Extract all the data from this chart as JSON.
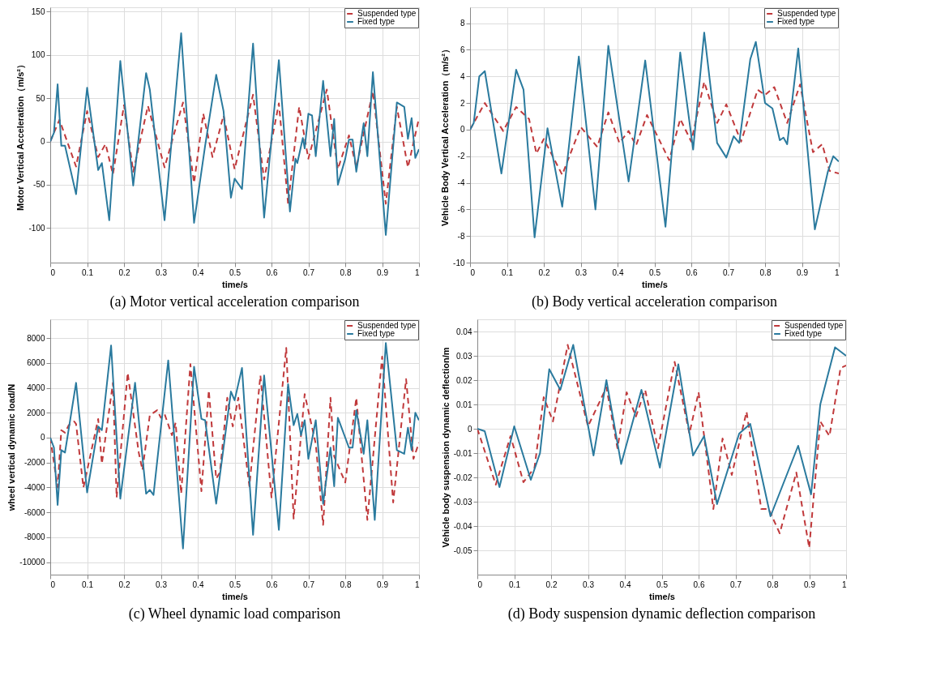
{
  "chart_data": [
    {
      "type": "line",
      "title": "(a) Motor vertical acceleration comparison",
      "xlabel": "time/s",
      "ylabel": "Motor Vertical Acceleration（m/s²）",
      "xlim": [
        0,
        1
      ],
      "xticks": [
        0,
        0.1,
        0.2,
        0.3,
        0.4,
        0.5,
        0.6,
        0.7,
        0.8,
        0.9,
        1
      ],
      "ylim": [
        -140,
        155
      ],
      "yticks": [
        -100,
        -50,
        0,
        50,
        100,
        150
      ],
      "grid": true,
      "legend": "top right",
      "series": [
        {
          "name": "Suspended type",
          "color": "#c0393b",
          "line_style": "dashed",
          "x": [
            0,
            0.025,
            0.07,
            0.1,
            0.13,
            0.15,
            0.17,
            0.2,
            0.225,
            0.265,
            0.31,
            0.36,
            0.39,
            0.415,
            0.44,
            0.47,
            0.5,
            0.55,
            0.58,
            0.62,
            0.645,
            0.675,
            0.7,
            0.75,
            0.78,
            0.81,
            0.83,
            0.875,
            0.91,
            0.94,
            0.97,
            1.0
          ],
          "values": [
            0,
            25,
            -29,
            35,
            -18,
            -3,
            -38,
            42,
            -35,
            41,
            -30,
            45,
            -48,
            32,
            -18,
            30,
            -32,
            54,
            -44,
            44,
            -72,
            40,
            -20,
            60,
            -32,
            7,
            -30,
            58,
            -72,
            40,
            -30,
            27
          ]
        },
        {
          "name": "Fixed type",
          "color": "#2a7a9e",
          "line_style": "solid",
          "x": [
            0,
            0.01,
            0.02,
            0.03,
            0.04,
            0.07,
            0.1,
            0.13,
            0.14,
            0.16,
            0.19,
            0.225,
            0.26,
            0.27,
            0.31,
            0.355,
            0.39,
            0.42,
            0.45,
            0.47,
            0.49,
            0.5,
            0.52,
            0.55,
            0.58,
            0.62,
            0.65,
            0.665,
            0.67,
            0.685,
            0.69,
            0.7,
            0.71,
            0.72,
            0.74,
            0.76,
            0.77,
            0.78,
            0.8,
            0.81,
            0.82,
            0.83,
            0.85,
            0.86,
            0.875,
            0.91,
            0.94,
            0.96,
            0.97,
            0.98,
            0.99,
            1.0
          ],
          "values": [
            0,
            10,
            66,
            -5,
            -5,
            -61,
            62,
            -33,
            -25,
            -91,
            93,
            -51,
            79,
            60,
            -91,
            125,
            -94,
            -5,
            77,
            35,
            -65,
            -43,
            -55,
            113,
            -88,
            94,
            -81,
            -20,
            -25,
            4,
            -8,
            32,
            30,
            -17,
            70,
            -17,
            26,
            -50,
            -20,
            2,
            2,
            -35,
            21,
            -17,
            80,
            -108,
            45,
            40,
            3,
            27,
            -19,
            -9
          ]
        }
      ]
    },
    {
      "type": "line",
      "title": "(b) Body vertical acceleration comparison",
      "xlabel": "time/s",
      "ylabel": "Vehicle Body Vertical Acceleration（m/s²）",
      "xlim": [
        0,
        1
      ],
      "xticks": [
        0,
        0.1,
        0.2,
        0.3,
        0.4,
        0.5,
        0.6,
        0.7,
        0.8,
        0.9,
        1
      ],
      "ylim": [
        -10,
        9.2
      ],
      "yticks": [
        -10,
        -8,
        -6,
        -4,
        -2,
        0,
        2,
        4,
        6,
        8
      ],
      "grid": true,
      "legend": "top right",
      "series": [
        {
          "name": "Suspended type",
          "color": "#c0393b",
          "line_style": "dashed",
          "x": [
            0,
            0.04,
            0.09,
            0.125,
            0.16,
            0.18,
            0.2,
            0.25,
            0.3,
            0.345,
            0.375,
            0.405,
            0.43,
            0.45,
            0.48,
            0.54,
            0.57,
            0.6,
            0.635,
            0.67,
            0.695,
            0.735,
            0.78,
            0.8,
            0.825,
            0.86,
            0.895,
            0.93,
            0.955,
            0.975,
            1.0
          ],
          "values": [
            0,
            2,
            -0.1,
            1.7,
            0.8,
            -1.8,
            -0.7,
            -3.4,
            0.2,
            -1.3,
            1.3,
            -1,
            -0.1,
            -1.2,
            1.1,
            -2.3,
            0.8,
            -0.9,
            3.6,
            0.5,
            1.9,
            -0.9,
            3,
            2.6,
            3.2,
            0.5,
            3.4,
            -1.7,
            -1.1,
            -3.1,
            -3.3
          ]
        },
        {
          "name": "Fixed type",
          "color": "#2a7a9e",
          "line_style": "solid",
          "x": [
            0,
            0.01,
            0.025,
            0.04,
            0.06,
            0.085,
            0.125,
            0.145,
            0.175,
            0.21,
            0.25,
            0.295,
            0.34,
            0.375,
            0.43,
            0.475,
            0.53,
            0.57,
            0.605,
            0.635,
            0.67,
            0.695,
            0.715,
            0.73,
            0.76,
            0.775,
            0.8,
            0.82,
            0.84,
            0.85,
            0.86,
            0.89,
            0.935,
            0.97,
            0.985,
            1.0
          ],
          "values": [
            0,
            0.5,
            4,
            4.4,
            1,
            -3.3,
            4.5,
            3,
            -8.1,
            0.1,
            -5.8,
            5.5,
            -6,
            6.3,
            -3.9,
            5.2,
            -7.3,
            5.8,
            -1.5,
            7.3,
            -1,
            -2.1,
            -0.5,
            -1,
            5.3,
            6.6,
            2,
            1.6,
            -0.8,
            -0.6,
            -1.1,
            6.1,
            -7.5,
            -3.2,
            -2,
            -2.4
          ]
        }
      ]
    },
    {
      "type": "line",
      "title": "(c) Wheel dynamic load comparison",
      "xlabel": "time/s",
      "ylabel": "wheel vertical dynamic load/N",
      "xlim": [
        0,
        1
      ],
      "xticks": [
        0,
        0.1,
        0.2,
        0.3,
        0.4,
        0.5,
        0.6,
        0.7,
        0.8,
        0.9,
        1
      ],
      "ylim": [
        -11000,
        9500
      ],
      "yticks": [
        -10000,
        -8000,
        -6000,
        -4000,
        -2000,
        0,
        2000,
        4000,
        6000,
        8000
      ],
      "grid": true,
      "legend": "top right",
      "series": [
        {
          "name": "Suspended type",
          "color": "#c0393b",
          "line_style": "dashed",
          "x": [
            0,
            0.02,
            0.03,
            0.04,
            0.05,
            0.065,
            0.07,
            0.09,
            0.13,
            0.14,
            0.17,
            0.18,
            0.21,
            0.24,
            0.25,
            0.27,
            0.29,
            0.3,
            0.31,
            0.33,
            0.34,
            0.355,
            0.38,
            0.41,
            0.43,
            0.45,
            0.46,
            0.48,
            0.495,
            0.51,
            0.54,
            0.57,
            0.6,
            0.64,
            0.66,
            0.69,
            0.72,
            0.74,
            0.76,
            0.77,
            0.8,
            0.83,
            0.86,
            0.9,
            0.93,
            0.965,
            0.985,
            1.0
          ],
          "values": [
            0,
            -4000,
            600,
            400,
            1000,
            1300,
            1100,
            -4000,
            1500,
            -2100,
            4400,
            -4800,
            5200,
            -1200,
            -2600,
            1800,
            2200,
            1600,
            1900,
            200,
            1200,
            -4500,
            5900,
            -4300,
            3800,
            -3300,
            -2800,
            3200,
            900,
            3200,
            -3900,
            5000,
            -4800,
            7200,
            -6500,
            3500,
            -500,
            -7000,
            3200,
            -1500,
            -3600,
            3200,
            -6600,
            6500,
            -5200,
            4700,
            -1700,
            -400
          ]
        },
        {
          "name": "Fixed type",
          "color": "#2a7a9e",
          "line_style": "solid",
          "x": [
            0,
            0.01,
            0.02,
            0.03,
            0.04,
            0.07,
            0.1,
            0.13,
            0.14,
            0.165,
            0.19,
            0.23,
            0.26,
            0.27,
            0.28,
            0.32,
            0.36,
            0.39,
            0.41,
            0.42,
            0.45,
            0.49,
            0.5,
            0.52,
            0.55,
            0.58,
            0.62,
            0.645,
            0.66,
            0.67,
            0.68,
            0.69,
            0.7,
            0.72,
            0.74,
            0.76,
            0.77,
            0.78,
            0.81,
            0.82,
            0.83,
            0.85,
            0.86,
            0.88,
            0.91,
            0.94,
            0.96,
            0.97,
            0.98,
            0.99,
            1.0
          ],
          "values": [
            0,
            -800,
            -5400,
            -1000,
            -1200,
            4400,
            -4400,
            900,
            600,
            7400,
            -4900,
            4400,
            -4500,
            -4200,
            -4600,
            6200,
            -8900,
            5700,
            1500,
            1400,
            -5300,
            3700,
            3000,
            5600,
            -7800,
            5000,
            -7400,
            4300,
            1000,
            1900,
            200,
            1400,
            -1700,
            1400,
            -5300,
            -800,
            -3900,
            1600,
            -800,
            -800,
            2200,
            -1300,
            1400,
            -6600,
            7600,
            -1000,
            -1300,
            800,
            -1000,
            2000,
            1400
          ]
        }
      ]
    },
    {
      "type": "line",
      "title": "(d) Body suspension dynamic deflection comparison",
      "xlabel": "time/s",
      "ylabel": "Vehicle body suspension dynamic deflection/m",
      "xlim": [
        0,
        1
      ],
      "xticks": [
        0,
        0.1,
        0.2,
        0.3,
        0.4,
        0.5,
        0.6,
        0.7,
        0.8,
        0.9,
        1
      ],
      "ylim": [
        -0.06,
        0.045
      ],
      "yticks": [
        -0.05,
        -0.04,
        -0.03,
        -0.02,
        -0.01,
        0,
        0.01,
        0.02,
        0.03,
        0.04
      ],
      "grid": true,
      "legend": "top right",
      "series": [
        {
          "name": "Suspended type",
          "color": "#c0393b",
          "line_style": "dashed",
          "x": [
            0,
            0.05,
            0.09,
            0.125,
            0.155,
            0.18,
            0.205,
            0.245,
            0.3,
            0.35,
            0.38,
            0.405,
            0.43,
            0.455,
            0.49,
            0.535,
            0.575,
            0.6,
            0.64,
            0.665,
            0.69,
            0.73,
            0.77,
            0.79,
            0.82,
            0.865,
            0.9,
            0.93,
            0.955,
            0.985,
            1.0
          ],
          "values": [
            0,
            -0.023,
            -0.003,
            -0.022,
            -0.016,
            0.013,
            0.003,
            0.0345,
            0.001,
            0.017,
            -0.008,
            0.015,
            0.005,
            0.016,
            -0.008,
            0.0275,
            -0.002,
            0.015,
            -0.033,
            -0.004,
            -0.019,
            0.007,
            -0.033,
            -0.033,
            -0.043,
            -0.018,
            -0.049,
            0.003,
            -0.003,
            0.025,
            0.026
          ]
        },
        {
          "name": "Fixed type",
          "color": "#2a7a9e",
          "line_style": "solid",
          "x": [
            0,
            0.02,
            0.06,
            0.1,
            0.145,
            0.17,
            0.195,
            0.225,
            0.26,
            0.315,
            0.35,
            0.39,
            0.445,
            0.495,
            0.545,
            0.585,
            0.615,
            0.65,
            0.71,
            0.74,
            0.795,
            0.87,
            0.905,
            0.93,
            0.97,
            1.0
          ],
          "values": [
            0,
            -0.001,
            -0.024,
            0.001,
            -0.021,
            -0.01,
            0.0245,
            0.016,
            0.0345,
            -0.011,
            0.02,
            -0.0145,
            0.016,
            -0.016,
            0.0265,
            -0.011,
            -0.003,
            -0.031,
            -0.002,
            0.002,
            -0.036,
            -0.007,
            -0.027,
            0.01,
            0.0335,
            0.03
          ]
        }
      ]
    }
  ]
}
